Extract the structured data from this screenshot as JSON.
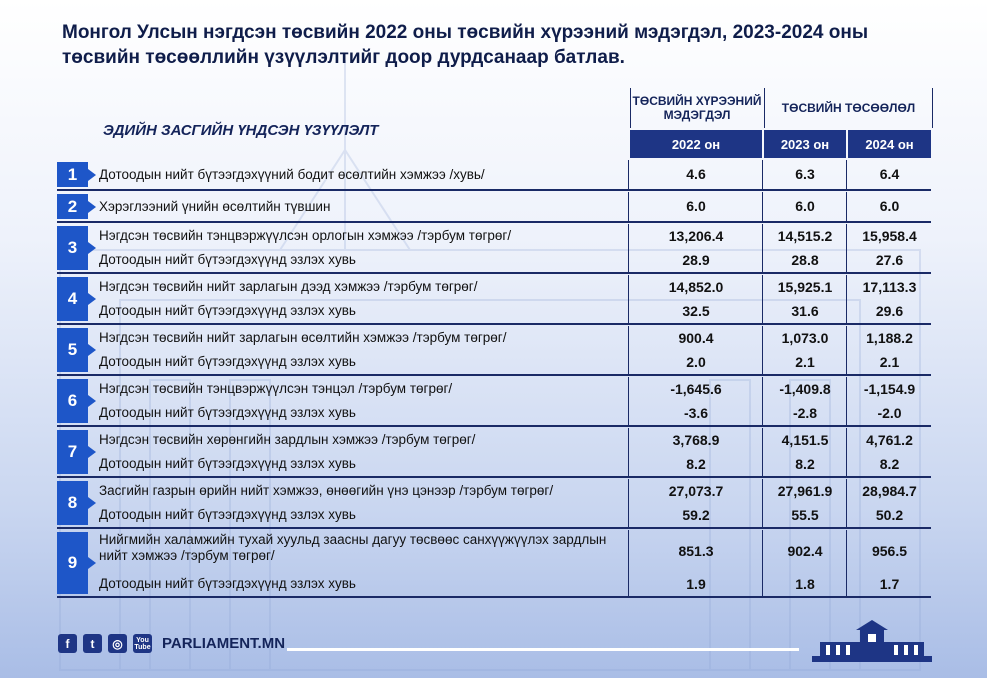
{
  "title": "Монгол Улсын нэгдсэн төсвийн 2022 оны төсвийн хүрээний мэдэгдэл, 2023-2024 оны төсвийн төсөөллийн үзүүлэлтийг доор дурдсанаар батлав.",
  "table": {
    "left_header": "ЭДИЙН ЗАСГИЙН ҮНДСЭН ҮЗҮҮЛЭЛТ",
    "group1": "ТӨСВИЙН ХҮРЭЭНИЙ МЭДЭГДЭЛ",
    "group2": "ТӨСВИЙН ТӨСӨӨЛӨЛ",
    "years": [
      "2022 он",
      "2023 он",
      "2024 он"
    ],
    "rows": [
      {
        "num": "1",
        "items": [
          {
            "label": "Дотоодын нийт бүтээгдэхүүний бодит өсөлтийн хэмжээ /хувь/",
            "v": [
              "4.6",
              "6.3",
              "6.4"
            ]
          }
        ]
      },
      {
        "num": "2",
        "items": [
          {
            "label": "Хэрэглээний үнийн өсөлтийн түвшин",
            "v": [
              "6.0",
              "6.0",
              "6.0"
            ]
          }
        ]
      },
      {
        "num": "3",
        "items": [
          {
            "label": "Нэгдсэн төсвийн тэнцвэржүүлсэн орлогын хэмжээ /тэрбум төгрөг/",
            "v": [
              "13,206.4",
              "14,515.2",
              "15,958.4"
            ]
          },
          {
            "label": "Дотоодын нийт бүтээгдэхүүнд эзлэх хувь",
            "v": [
              "28.9",
              "28.8",
              "27.6"
            ]
          }
        ]
      },
      {
        "num": "4",
        "items": [
          {
            "label": "Нэгдсэн төсвийн нийт зарлагын дээд хэмжээ /тэрбум төгрөг/",
            "v": [
              "14,852.0",
              "15,925.1",
              "17,113.3"
            ]
          },
          {
            "label": "Дотоодын нийт бүтээгдэхүүнд эзлэх хувь",
            "v": [
              "32.5",
              "31.6",
              "29.6"
            ]
          }
        ]
      },
      {
        "num": "5",
        "items": [
          {
            "label": "Нэгдсэн төсвийн нийт зарлагын өсөлтийн хэмжээ /тэрбум төгрөг/",
            "v": [
              "900.4",
              "1,073.0",
              "1,188.2"
            ]
          },
          {
            "label": "Дотоодын нийт бүтээгдэхүүнд эзлэх хувь",
            "v": [
              "2.0",
              "2.1",
              "2.1"
            ]
          }
        ]
      },
      {
        "num": "6",
        "items": [
          {
            "label": "Нэгдсэн төсвийн тэнцвэржүүлсэн тэнцэл /тэрбум төгрөг/",
            "v": [
              "-1,645.6",
              "-1,409.8",
              "-1,154.9"
            ]
          },
          {
            "label": "Дотоодын нийт бүтээгдэхүүнд эзлэх хувь",
            "v": [
              "-3.6",
              "-2.8",
              "-2.0"
            ]
          }
        ]
      },
      {
        "num": "7",
        "items": [
          {
            "label": "Нэгдсэн төсвийн хөрөнгийн зардлын хэмжээ /тэрбум төгрөг/",
            "v": [
              "3,768.9",
              "4,151.5",
              "4,761.2"
            ]
          },
          {
            "label": "Дотоодын нийт бүтээгдэхүүнд эзлэх хувь",
            "v": [
              "8.2",
              "8.2",
              "8.2"
            ]
          }
        ]
      },
      {
        "num": "8",
        "items": [
          {
            "label": "Засгийн газрын өрийн нийт хэмжээ, өнөөгийн үнэ цэнээр /тэрбум төгрөг/",
            "v": [
              "27,073.7",
              "27,961.9",
              "28,984.7"
            ]
          },
          {
            "label": "Дотоодын нийт бүтээгдэхүүнд эзлэх хувь",
            "v": [
              "59.2",
              "55.5",
              "50.2"
            ]
          }
        ]
      },
      {
        "num": "9",
        "items": [
          {
            "label": "Нийгмийн халамжийн тухай хуульд заасны дагуу төсвөөс санхүүжүүлэх зардлын нийт хэмжээ /тэрбум төгрөг/",
            "v": [
              "851.3",
              "902.4",
              "956.5"
            ]
          },
          {
            "label": "Дотоодын нийт бүтээгдэхүүнд эзлэх хувь",
            "v": [
              "1.9",
              "1.8",
              "1.7"
            ]
          }
        ]
      }
    ]
  },
  "footer": {
    "site": "PARLIAMENT.MN",
    "icons": [
      "facebook-icon",
      "twitter-icon",
      "instagram-icon",
      "youtube-icon"
    ],
    "youtube_text": "You Tube"
  },
  "colors": {
    "navy": "#1e3585",
    "accent": "#1e56c8",
    "text": "#14245a"
  }
}
